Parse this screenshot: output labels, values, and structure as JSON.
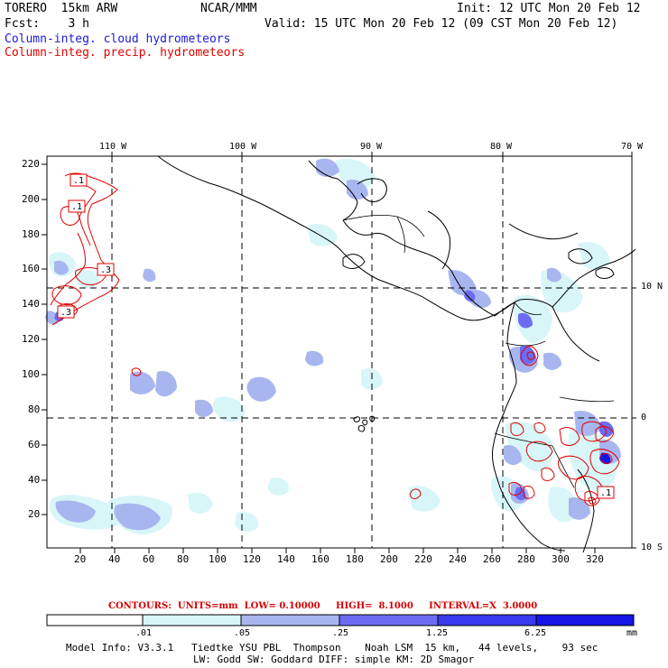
{
  "header": {
    "model": "TORERO  15km ARW",
    "org": "NCAR/MMM",
    "init": "Init: 12 UTC Mon 20 Feb 12",
    "fcst": "Fcst:    3 h",
    "valid": "Valid: 15 UTC Mon 20 Feb 12 (09 CST Mon 20 Feb 12)",
    "field_cloud": "Column-integ. cloud hydrometeors",
    "field_precip": "Column-integ. precip. hydrometeors"
  },
  "map": {
    "lon_labels": [
      "110 W",
      "100 W",
      "90 W",
      "80 W",
      "70 W"
    ],
    "lat_labels": [
      "10 N",
      "0",
      "10 S"
    ],
    "y_grid_ticks": [
      "220",
      "200",
      "180",
      "160",
      "140",
      "120",
      "100",
      "80",
      "60",
      "40",
      "20"
    ],
    "x_grid_ticks": [
      "20",
      "40",
      "60",
      "80",
      "100",
      "120",
      "140",
      "160",
      "180",
      "200",
      "220",
      "240",
      "260",
      "280",
      "300",
      "320"
    ],
    "contour_labels": [
      ".1",
      ".1",
      ".3",
      ".3",
      ".1"
    ]
  },
  "contours_info": "CONTOURS:  UNITS=mm  LOW= 0.10000     HIGH=  8.1000     INTERVAL=X  3.0000",
  "colorbar": {
    "labels": [
      ".01",
      ".05",
      ".25",
      "1.25",
      "6.25"
    ],
    "units": "mm",
    "colors": [
      "#ffffff",
      "#d8f6f8",
      "#a8b6f0",
      "#6c6cf2",
      "#3a3aee",
      "#1515e6"
    ]
  },
  "footer": {
    "line1": "Model Info: V3.3.1   Tiedtke YSU PBL  Thompson    Noah LSM  15 km,   44 levels,    93 sec",
    "line2": "LW: Godd SW: Goddard DIFF: simple KM: 2D Smagor"
  },
  "colors": {
    "cloud_text": "#1b1bd6",
    "precip_text": "#e00000",
    "coast": "#000000",
    "precip_contour": "#e00000"
  }
}
